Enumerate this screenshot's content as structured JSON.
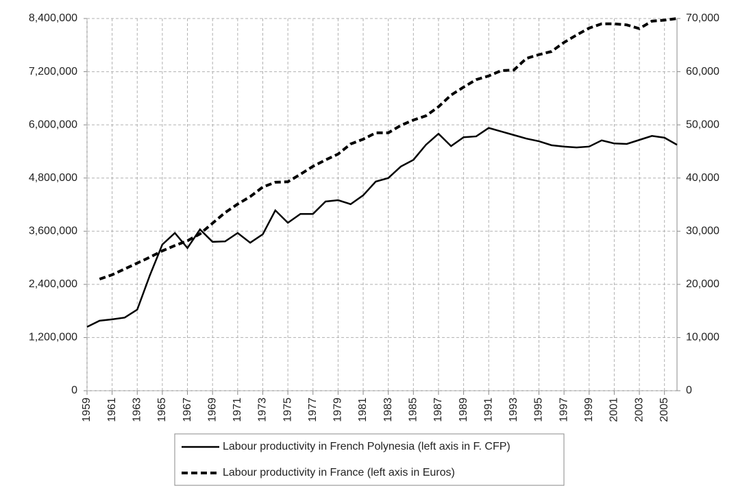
{
  "chart_data": {
    "type": "line",
    "x": [
      1959,
      1960,
      1961,
      1962,
      1963,
      1964,
      1965,
      1966,
      1967,
      1968,
      1969,
      1970,
      1971,
      1972,
      1973,
      1974,
      1975,
      1976,
      1977,
      1978,
      1979,
      1980,
      1981,
      1982,
      1983,
      1984,
      1985,
      1986,
      1987,
      1988,
      1989,
      1990,
      1991,
      1992,
      1993,
      1994,
      1995,
      1996,
      1997,
      1998,
      1999,
      2000,
      2001,
      2002,
      2003,
      2004,
      2005,
      2006
    ],
    "xlim": [
      1959,
      2006
    ],
    "xticks": [
      1959,
      1961,
      1963,
      1965,
      1967,
      1969,
      1971,
      1973,
      1975,
      1977,
      1979,
      1981,
      1983,
      1985,
      1987,
      1989,
      1991,
      1993,
      1995,
      1997,
      1999,
      2001,
      2003,
      2005
    ],
    "ylim": [
      0,
      8400000
    ],
    "yticks": [
      0,
      {
        "value": 1200000,
        "label": "1,200,000"
      },
      {
        "value": 2400000,
        "label": "2,400,000"
      },
      {
        "value": 3600000,
        "label": "3,600,000"
      },
      {
        "value": 4800000,
        "label": "4,800,000"
      },
      {
        "value": 6000000,
        "label": "6,000,000"
      },
      {
        "value": 7200000,
        "label": "7,200,000"
      },
      {
        "value": 8400000,
        "label": "8,400,000"
      }
    ],
    "y2lim": [
      0,
      70000
    ],
    "y2ticks": [
      0,
      {
        "value": 10000,
        "label": "10,000"
      },
      {
        "value": 20000,
        "label": "20,000"
      },
      {
        "value": 30000,
        "label": "30,000"
      },
      {
        "value": 40000,
        "label": "40,000"
      },
      {
        "value": 50000,
        "label": "50,000"
      },
      {
        "value": 60000,
        "label": "60,000"
      },
      {
        "value": 70000,
        "label": "70,000"
      }
    ],
    "grid": true,
    "legend": "bottom",
    "series": [
      {
        "name": "Labour productivity in French Polynesia (left axis in F. CFP)",
        "color": "#000000",
        "line_style": "solid",
        "axis": "y",
        "values": [
          1440000,
          1580000,
          1610000,
          1650000,
          1830000,
          2600000,
          3300000,
          3560000,
          3220000,
          3640000,
          3360000,
          3370000,
          3560000,
          3340000,
          3530000,
          4070000,
          3790000,
          3990000,
          3990000,
          4270000,
          4300000,
          4210000,
          4410000,
          4720000,
          4800000,
          5060000,
          5210000,
          5550000,
          5800000,
          5520000,
          5720000,
          5740000,
          5930000,
          5850000,
          5770000,
          5690000,
          5630000,
          5540000,
          5510000,
          5490000,
          5510000,
          5650000,
          5580000,
          5570000,
          5660000,
          5750000,
          5710000,
          5550000
        ]
      },
      {
        "name": "Labour productivity in France (left axis in Euros)",
        "color": "#000000",
        "line_style": "dashed",
        "axis": "y2",
        "values": [
          null,
          21000,
          21800,
          22900,
          24000,
          25100,
          26300,
          27300,
          28200,
          29500,
          31500,
          33500,
          35100,
          36500,
          38300,
          39200,
          39300,
          40700,
          42200,
          43400,
          44500,
          46400,
          47300,
          48500,
          48500,
          49900,
          50900,
          51700,
          53400,
          55600,
          57100,
          58500,
          59200,
          60200,
          60300,
          62500,
          63200,
          63800,
          65500,
          66900,
          68200,
          69000,
          69000,
          68800,
          68100,
          69500,
          69700,
          70000
        ]
      }
    ]
  }
}
